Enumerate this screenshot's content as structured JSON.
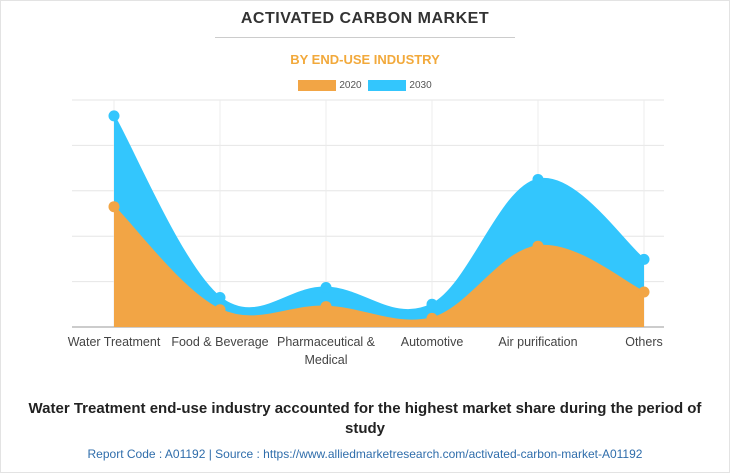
{
  "chart_data": {
    "type": "area",
    "title": "ACTIVATED CARBON MARKET",
    "subtitle": "BY END-USE INDUSTRY",
    "categories": [
      "Water Treatment",
      "Food & Beverage",
      "Pharmaceutical & Medical",
      "Automotive",
      "Air purification",
      "Others"
    ],
    "category_lines": [
      [
        "Water Treatment"
      ],
      [
        "Food & Beverage"
      ],
      [
        "Pharmaceutical &",
        "Medical"
      ],
      [
        "Automotive"
      ],
      [
        "Air purification"
      ],
      [
        "Others"
      ]
    ],
    "series": [
      {
        "name": "2020",
        "color": "#f2a545",
        "values": [
          26.5,
          3.8,
          4.5,
          1.9,
          17.8,
          7.7
        ]
      },
      {
        "name": "2030",
        "color": "#33c6fd",
        "values": [
          46.5,
          6.5,
          8.7,
          5.0,
          32.5,
          14.9
        ]
      }
    ],
    "ylim": [
      0,
      50
    ],
    "gridlines": true,
    "legend_position": "top-center",
    "xlabel": "",
    "ylabel": ""
  },
  "caption": "Water Treatment end-use industry accounted for the highest market share during the period of study",
  "footer": "Report Code : A01192  |  Source : https://www.alliedmarketresearch.com/activated-carbon-market-A01192",
  "colors": {
    "accent": "#f2a93b",
    "footer": "#2f6dab"
  }
}
